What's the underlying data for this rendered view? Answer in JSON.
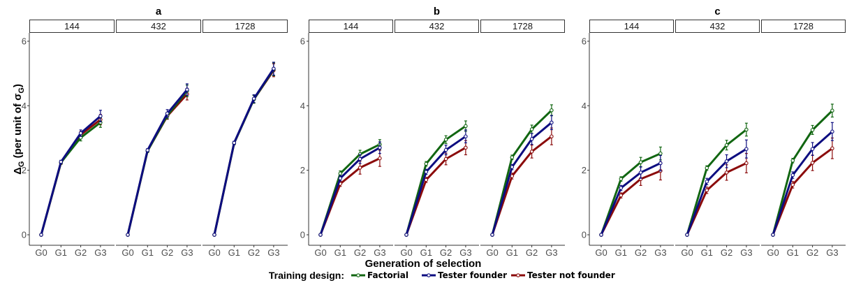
{
  "chart_data": {
    "type": "line",
    "y_axis_label_main": "Δ",
    "y_axis_label_sub": "G",
    "y_axis_label_rest": " (per unit of σ",
    "y_axis_label_sigma_sub": "G",
    "y_axis_label_close": ")",
    "xlabel": "Generation of selection",
    "categories": [
      "G0",
      "G1",
      "G2",
      "G3"
    ],
    "ylim": [
      0,
      6.5
    ],
    "yticks": [
      "0",
      "2",
      "4",
      "6"
    ],
    "ytick_values": [
      0,
      2,
      4,
      6
    ],
    "legend_title": "Training design:",
    "legend_placement": "bottom",
    "series_styles": [
      {
        "name": "Factorial",
        "color": "#116611"
      },
      {
        "name": "Tester founder",
        "color": "#0d0d80"
      },
      {
        "name": "Tester not founder",
        "color": "#8b0b0b"
      }
    ],
    "groups": [
      {
        "title": "a",
        "panels": [
          {
            "label": "144",
            "series": [
              {
                "values": [
                  0,
                  2.24,
                  3.01,
                  3.48
                ],
                "err": [
                  0,
                  0.05,
                  0.1,
                  0.15
                ]
              },
              {
                "values": [
                  0,
                  2.26,
                  3.15,
                  3.68
                ],
                "err": [
                  0,
                  0.05,
                  0.1,
                  0.18
                ]
              },
              {
                "values": [
                  0,
                  2.23,
                  3.1,
                  3.57
                ],
                "err": [
                  0,
                  0.05,
                  0.1,
                  0.16
                ]
              }
            ]
          },
          {
            "label": "432",
            "series": [
              {
                "values": [
                  0,
                  2.6,
                  3.7,
                  4.46
                ],
                "err": [
                  0,
                  0.05,
                  0.1,
                  0.18
                ]
              },
              {
                "values": [
                  0,
                  2.62,
                  3.76,
                  4.5
                ],
                "err": [
                  0,
                  0.05,
                  0.12,
                  0.18
                ]
              },
              {
                "values": [
                  0,
                  2.6,
                  3.68,
                  4.36
                ],
                "err": [
                  0,
                  0.05,
                  0.1,
                  0.18
                ]
              }
            ]
          },
          {
            "label": "1728",
            "series": [
              {
                "values": [
                  0,
                  2.84,
                  4.2,
                  5.13
                ],
                "err": [
                  0,
                  0.05,
                  0.12,
                  0.2
                ]
              },
              {
                "values": [
                  0,
                  2.85,
                  4.22,
                  5.15
                ],
                "err": [
                  0,
                  0.05,
                  0.12,
                  0.2
                ]
              },
              {
                "values": [
                  0,
                  2.84,
                  4.2,
                  5.1
                ],
                "err": [
                  0,
                  0.05,
                  0.12,
                  0.2
                ]
              }
            ]
          }
        ]
      },
      {
        "title": "b",
        "panels": [
          {
            "label": "144",
            "series": [
              {
                "values": [
                  0,
                  1.9,
                  2.5,
                  2.8
                ],
                "err": [
                  0,
                  0.08,
                  0.12,
                  0.15
                ]
              },
              {
                "values": [
                  0,
                  1.75,
                  2.35,
                  2.7
                ],
                "err": [
                  0,
                  0.08,
                  0.14,
                  0.18
                ]
              },
              {
                "values": [
                  0,
                  1.58,
                  2.08,
                  2.37
                ],
                "err": [
                  0,
                  0.08,
                  0.2,
                  0.25
                ]
              }
            ]
          },
          {
            "label": "432",
            "series": [
              {
                "values": [
                  0,
                  2.2,
                  2.95,
                  3.37
                ],
                "err": [
                  0,
                  0.07,
                  0.12,
                  0.16
                ]
              },
              {
                "values": [
                  0,
                  1.95,
                  2.63,
                  3.05
                ],
                "err": [
                  0,
                  0.08,
                  0.15,
                  0.2
                ]
              },
              {
                "values": [
                  0,
                  1.7,
                  2.35,
                  2.7
                ],
                "err": [
                  0,
                  0.08,
                  0.18,
                  0.22
                ]
              }
            ]
          },
          {
            "label": "1728",
            "series": [
              {
                "values": [
                  0,
                  2.4,
                  3.27,
                  3.86
                ],
                "err": [
                  0,
                  0.07,
                  0.13,
                  0.17
                ]
              },
              {
                "values": [
                  0,
                  2.1,
                  2.97,
                  3.48
                ],
                "err": [
                  0,
                  0.08,
                  0.17,
                  0.22
                ]
              },
              {
                "values": [
                  0,
                  1.82,
                  2.58,
                  3.05
                ],
                "err": [
                  0,
                  0.09,
                  0.2,
                  0.26
                ]
              }
            ]
          }
        ]
      },
      {
        "title": "c",
        "panels": [
          {
            "label": "144",
            "series": [
              {
                "values": [
                  0,
                  1.73,
                  2.25,
                  2.52
                ],
                "err": [
                  0,
                  0.07,
                  0.15,
                  0.2
                ]
              },
              {
                "values": [
                  0,
                  1.45,
                  1.93,
                  2.22
                ],
                "err": [
                  0,
                  0.08,
                  0.18,
                  0.24
                ]
              },
              {
                "values": [
                  0,
                  1.22,
                  1.73,
                  1.98
                ],
                "err": [
                  0,
                  0.08,
                  0.2,
                  0.28
                ]
              }
            ]
          },
          {
            "label": "432",
            "series": [
              {
                "values": [
                  0,
                  2.07,
                  2.78,
                  3.26
                ],
                "err": [
                  0,
                  0.07,
                  0.15,
                  0.2
                ]
              },
              {
                "values": [
                  0,
                  1.65,
                  2.28,
                  2.66
                ],
                "err": [
                  0,
                  0.1,
                  0.2,
                  0.28
                ]
              },
              {
                "values": [
                  0,
                  1.38,
                  1.93,
                  2.22
                ],
                "err": [
                  0,
                  0.1,
                  0.24,
                  0.3
                ]
              }
            ]
          },
          {
            "label": "1728",
            "series": [
              {
                "values": [
                  0,
                  2.3,
                  3.25,
                  3.85
                ],
                "err": [
                  0,
                  0.07,
                  0.14,
                  0.2
                ]
              },
              {
                "values": [
                  0,
                  1.85,
                  2.66,
                  3.2
                ],
                "err": [
                  0,
                  0.1,
                  0.2,
                  0.28
                ]
              },
              {
                "values": [
                  0,
                  1.55,
                  2.23,
                  2.68
                ],
                "err": [
                  0,
                  0.1,
                  0.24,
                  0.32
                ]
              }
            ]
          }
        ]
      }
    ]
  }
}
